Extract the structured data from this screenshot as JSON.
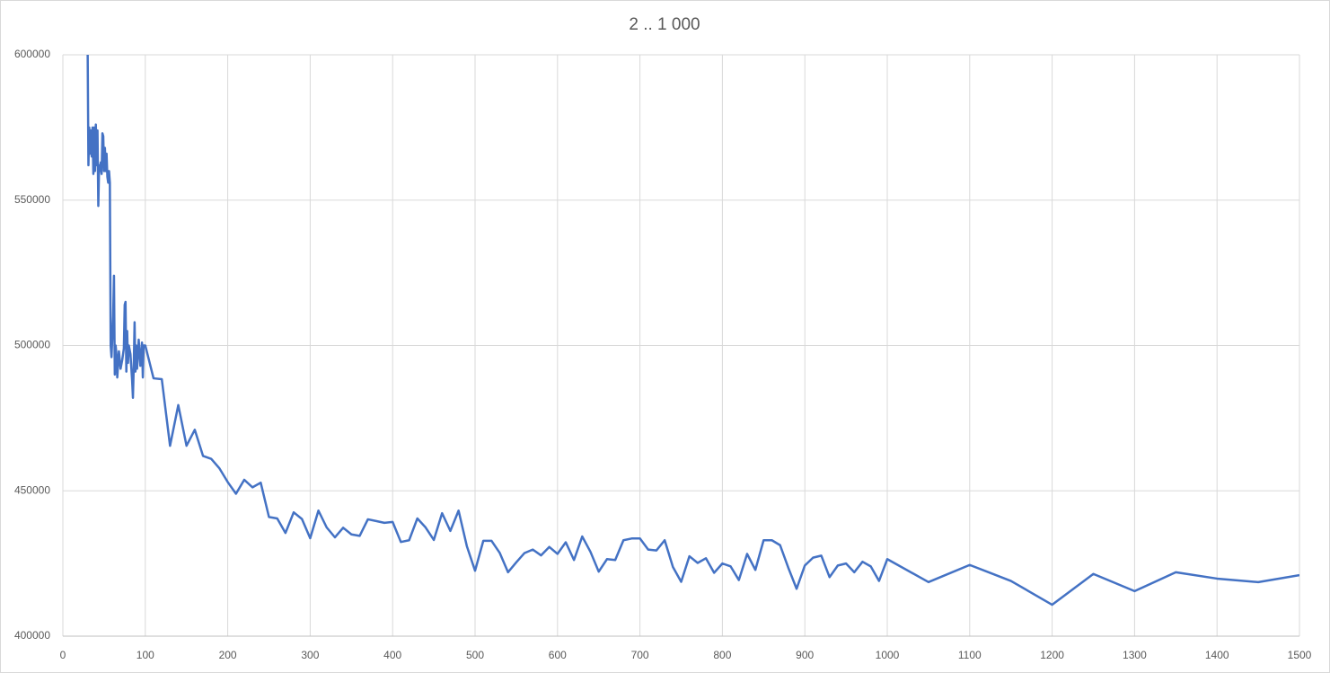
{
  "chart_data": {
    "type": "line",
    "title": "2 .. 1 000",
    "color": "#4472c4",
    "grid": true,
    "x": [
      30,
      31,
      32,
      33,
      34,
      35,
      36,
      37,
      38,
      39,
      40,
      41,
      42,
      43,
      44,
      45,
      46,
      47,
      48,
      49,
      50,
      51,
      52,
      53,
      54,
      55,
      56,
      57,
      58,
      59,
      60,
      61,
      62,
      63,
      64,
      65,
      66,
      68,
      70,
      72,
      74,
      75,
      76,
      77,
      78,
      79,
      80,
      82,
      84,
      85,
      86,
      87,
      88,
      89,
      90,
      92,
      94,
      96,
      97,
      98,
      100,
      110,
      120,
      130,
      140,
      150,
      160,
      170,
      180,
      190,
      200,
      210,
      220,
      230,
      240,
      250,
      260,
      270,
      280,
      290,
      300,
      310,
      320,
      330,
      340,
      350,
      360,
      370,
      380,
      390,
      400,
      410,
      420,
      430,
      440,
      450,
      460,
      470,
      480,
      490,
      500,
      510,
      520,
      530,
      540,
      550,
      560,
      570,
      580,
      590,
      600,
      610,
      620,
      630,
      640,
      650,
      660,
      670,
      680,
      690,
      700,
      710,
      720,
      730,
      740,
      750,
      760,
      770,
      780,
      790,
      800,
      810,
      820,
      830,
      840,
      850,
      860,
      870,
      880,
      890,
      900,
      910,
      920,
      930,
      940,
      950,
      960,
      970,
      980,
      990,
      1000,
      1050,
      1100,
      1150,
      1200,
      1250,
      1300,
      1350,
      1400,
      1450,
      1500
    ],
    "values": [
      605000,
      562000,
      575000,
      566000,
      574000,
      565000,
      575000,
      559000,
      575000,
      560000,
      576000,
      562000,
      574000,
      548000,
      562000,
      560000,
      563000,
      559000,
      573000,
      572000,
      560000,
      568000,
      560000,
      566000,
      558000,
      556000,
      560000,
      556000,
      500000,
      496000,
      503000,
      510000,
      524000,
      490000,
      500000,
      497000,
      489000,
      498000,
      492000,
      495000,
      499000,
      514000,
      515000,
      491000,
      505000,
      494000,
      500000,
      497000,
      488000,
      482000,
      493000,
      508000,
      491000,
      500000,
      492000,
      502000,
      493000,
      501000,
      489000,
      500000,
      500000,
      488700,
      488400,
      465500,
      479500,
      465500,
      471000,
      462000,
      461000,
      457700,
      453000,
      449000,
      453800,
      451200,
      452800,
      441000,
      440500,
      435500,
      442600,
      440300,
      433700,
      443200,
      437400,
      434000,
      437300,
      435000,
      434500,
      440200,
      439600,
      439000,
      439300,
      432400,
      433000,
      440500,
      437400,
      433100,
      442300,
      436200,
      443200,
      431000,
      422500,
      432800,
      432800,
      428600,
      422000,
      425400,
      428600,
      429800,
      427800,
      430700,
      428300,
      432300,
      426200,
      434300,
      429000,
      422200,
      426500,
      426200,
      433000,
      433600,
      433600,
      429800,
      429500,
      433000,
      423800,
      418700,
      427500,
      425200,
      426800,
      421800,
      425000,
      424000,
      419300,
      428300,
      422800,
      433000,
      433000,
      431300,
      423500,
      416300,
      424300,
      427000,
      427700,
      420300,
      424300,
      425000,
      422000,
      425600,
      424000,
      419000,
      426500,
      418600,
      424500,
      419000,
      410800,
      421400,
      415500,
      422000,
      419800,
      418600,
      421000
    ],
    "xlim": [
      0,
      1500
    ],
    "xticks": [
      0,
      100,
      200,
      300,
      400,
      500,
      600,
      700,
      800,
      900,
      1000,
      1100,
      1200,
      1300,
      1400,
      1500
    ],
    "ylim": [
      400000,
      600000
    ],
    "yticks": [
      400000,
      450000,
      500000,
      550000,
      600000
    ]
  }
}
